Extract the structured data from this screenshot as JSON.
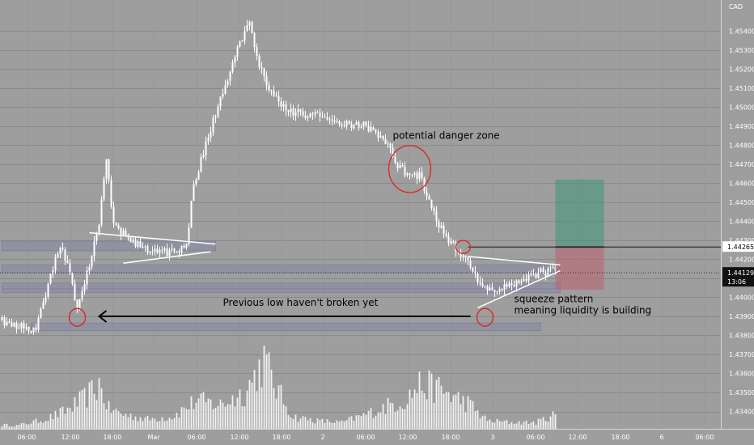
{
  "chart_data": {
    "type": "candlestick",
    "title": "",
    "xlabel": "",
    "ylabel": "",
    "currency_label": "CAD",
    "ylim": [
      1.434,
      1.4555
    ],
    "grid": true,
    "y_ticks": [
      1.454,
      1.453,
      1.452,
      1.451,
      1.45,
      1.449,
      1.448,
      1.447,
      1.446,
      1.445,
      1.444,
      1.443,
      1.442,
      1.441,
      1.44,
      1.439,
      1.438,
      1.437,
      1.436,
      1.435,
      1.434
    ],
    "y_tick_labels": [
      "1.45400",
      "1.45300",
      "1.45200",
      "1.45100",
      "1.45000",
      "1.44900",
      "1.44800",
      "1.44700",
      "1.44600",
      "1.44500",
      "1.44400",
      "1.44300",
      "1.44200",
      "1.44100",
      "1.44000",
      "1.43900",
      "1.43800",
      "1.43700",
      "1.43600",
      "1.43500",
      "1.43400"
    ],
    "x_tick_labels": [
      "06:00",
      "12:00",
      "18:00",
      "Mar",
      "06:00",
      "12:00",
      "18:00",
      "2",
      "06:00",
      "12:00",
      "18:00",
      "3",
      "06:00",
      "12:00",
      "18:00",
      "6",
      "06:00"
    ],
    "price_marker": {
      "label": "1.44265",
      "value": 1.44265
    },
    "current_price": {
      "label": "1.44129",
      "value": 1.44129,
      "countdown": "13:06"
    },
    "anchors": [
      {
        "t": 0,
        "p": 1.4388
      },
      {
        "t": 4,
        "p": 1.4385
      },
      {
        "t": 10,
        "p": 1.4384
      },
      {
        "t": 14,
        "p": 1.4383
      },
      {
        "t": 20,
        "p": 1.4412
      },
      {
        "t": 24,
        "p": 1.4428
      },
      {
        "t": 28,
        "p": 1.4412
      },
      {
        "t": 31,
        "p": 1.4392
      },
      {
        "t": 35,
        "p": 1.4412
      },
      {
        "t": 40,
        "p": 1.444
      },
      {
        "t": 43,
        "p": 1.4473
      },
      {
        "t": 46,
        "p": 1.4438
      },
      {
        "t": 55,
        "p": 1.4428
      },
      {
        "t": 65,
        "p": 1.4423
      },
      {
        "t": 72,
        "p": 1.4425
      },
      {
        "t": 76,
        "p": 1.4428
      },
      {
        "t": 79,
        "p": 1.446
      },
      {
        "t": 84,
        "p": 1.448
      },
      {
        "t": 90,
        "p": 1.4505
      },
      {
        "t": 97,
        "p": 1.453
      },
      {
        "t": 102,
        "p": 1.4545
      },
      {
        "t": 105,
        "p": 1.4525
      },
      {
        "t": 110,
        "p": 1.451
      },
      {
        "t": 118,
        "p": 1.4498
      },
      {
        "t": 130,
        "p": 1.4495
      },
      {
        "t": 140,
        "p": 1.4492
      },
      {
        "t": 150,
        "p": 1.449
      },
      {
        "t": 158,
        "p": 1.4482
      },
      {
        "t": 163,
        "p": 1.447
      },
      {
        "t": 168,
        "p": 1.4463
      },
      {
        "t": 172,
        "p": 1.4465
      },
      {
        "t": 176,
        "p": 1.445
      },
      {
        "t": 180,
        "p": 1.4438
      },
      {
        "t": 187,
        "p": 1.4425
      },
      {
        "t": 191,
        "p": 1.442
      },
      {
        "t": 197,
        "p": 1.4408
      },
      {
        "t": 203,
        "p": 1.4403
      },
      {
        "t": 209,
        "p": 1.4407
      },
      {
        "t": 215,
        "p": 1.441
      },
      {
        "t": 222,
        "p": 1.4413
      },
      {
        "t": 228,
        "p": 1.4414
      }
    ],
    "volume_profile": [
      {
        "t": 0,
        "v": 0.05
      },
      {
        "t": 6,
        "v": 0.04
      },
      {
        "t": 12,
        "v": 0.08
      },
      {
        "t": 18,
        "v": 0.12
      },
      {
        "t": 26,
        "v": 0.22
      },
      {
        "t": 34,
        "v": 0.38
      },
      {
        "t": 40,
        "v": 0.55
      },
      {
        "t": 44,
        "v": 0.25
      },
      {
        "t": 50,
        "v": 0.18
      },
      {
        "t": 60,
        "v": 0.12
      },
      {
        "t": 70,
        "v": 0.15
      },
      {
        "t": 80,
        "v": 0.35
      },
      {
        "t": 90,
        "v": 0.3
      },
      {
        "t": 100,
        "v": 0.45
      },
      {
        "t": 108,
        "v": 0.85
      },
      {
        "t": 114,
        "v": 0.45
      },
      {
        "t": 120,
        "v": 0.15
      },
      {
        "t": 130,
        "v": 0.1
      },
      {
        "t": 140,
        "v": 0.08
      },
      {
        "t": 150,
        "v": 0.18
      },
      {
        "t": 160,
        "v": 0.3
      },
      {
        "t": 166,
        "v": 0.35
      },
      {
        "t": 172,
        "v": 0.55
      },
      {
        "t": 180,
        "v": 0.5
      },
      {
        "t": 186,
        "v": 0.4
      },
      {
        "t": 192,
        "v": 0.32
      },
      {
        "t": 200,
        "v": 0.1
      },
      {
        "t": 210,
        "v": 0.08
      },
      {
        "t": 220,
        "v": 0.08
      },
      {
        "t": 228,
        "v": 0.18
      }
    ],
    "zones": [
      {
        "from": 0,
        "to": 88,
        "low": 1.44245,
        "high": 1.44295
      },
      {
        "from": 0,
        "to": 230,
        "low": 1.4413,
        "high": 1.4417
      },
      {
        "from": 0,
        "to": 230,
        "low": 1.44045,
        "high": 1.44075
      },
      {
        "from": 0,
        "to": 230,
        "low": 1.44025,
        "high": 1.44045
      },
      {
        "from": 12,
        "to": 222,
        "low": 1.43825,
        "high": 1.43865
      }
    ],
    "triangles": [
      {
        "line1": [
          [
            36,
            1.4434
          ],
          [
            88,
            1.4428
          ]
        ],
        "line2": [
          [
            50,
            1.4418
          ],
          [
            86,
            1.4424
          ]
        ]
      },
      {
        "line1": [
          [
            192,
            1.44215
          ],
          [
            230,
            1.4417
          ]
        ],
        "line2": [
          [
            196,
            1.43945
          ],
          [
            230,
            1.4414
          ]
        ]
      }
    ],
    "circles": [
      {
        "t": 31,
        "p": 1.43895,
        "rx": 10,
        "ry": 11
      },
      {
        "t": 168,
        "p": 1.44675,
        "rx": 26,
        "ry": 29
      },
      {
        "t": 190,
        "p": 1.44265,
        "rx": 9,
        "ry": 8
      },
      {
        "t": 199,
        "p": 1.43895,
        "rx": 10,
        "ry": 11
      }
    ],
    "position": {
      "from": 228,
      "to": 248,
      "entry": 1.44265,
      "target": 1.4462,
      "stop": 1.4404
    },
    "arrow": {
      "from": [
        193,
        1.439
      ],
      "to": [
        40,
        1.439
      ]
    },
    "annotations": [
      {
        "text": "potential danger zone",
        "t": 161,
        "p": 1.44835
      },
      {
        "text": "Previous low haven't broken yet",
        "t": 91,
        "p": 1.43955
      },
      {
        "text": "squeeze pattern",
        "t": 211,
        "p": 1.43975
      },
      {
        "text": "meaning liquidity is building",
        "t": 211,
        "p": 1.43915
      }
    ]
  }
}
